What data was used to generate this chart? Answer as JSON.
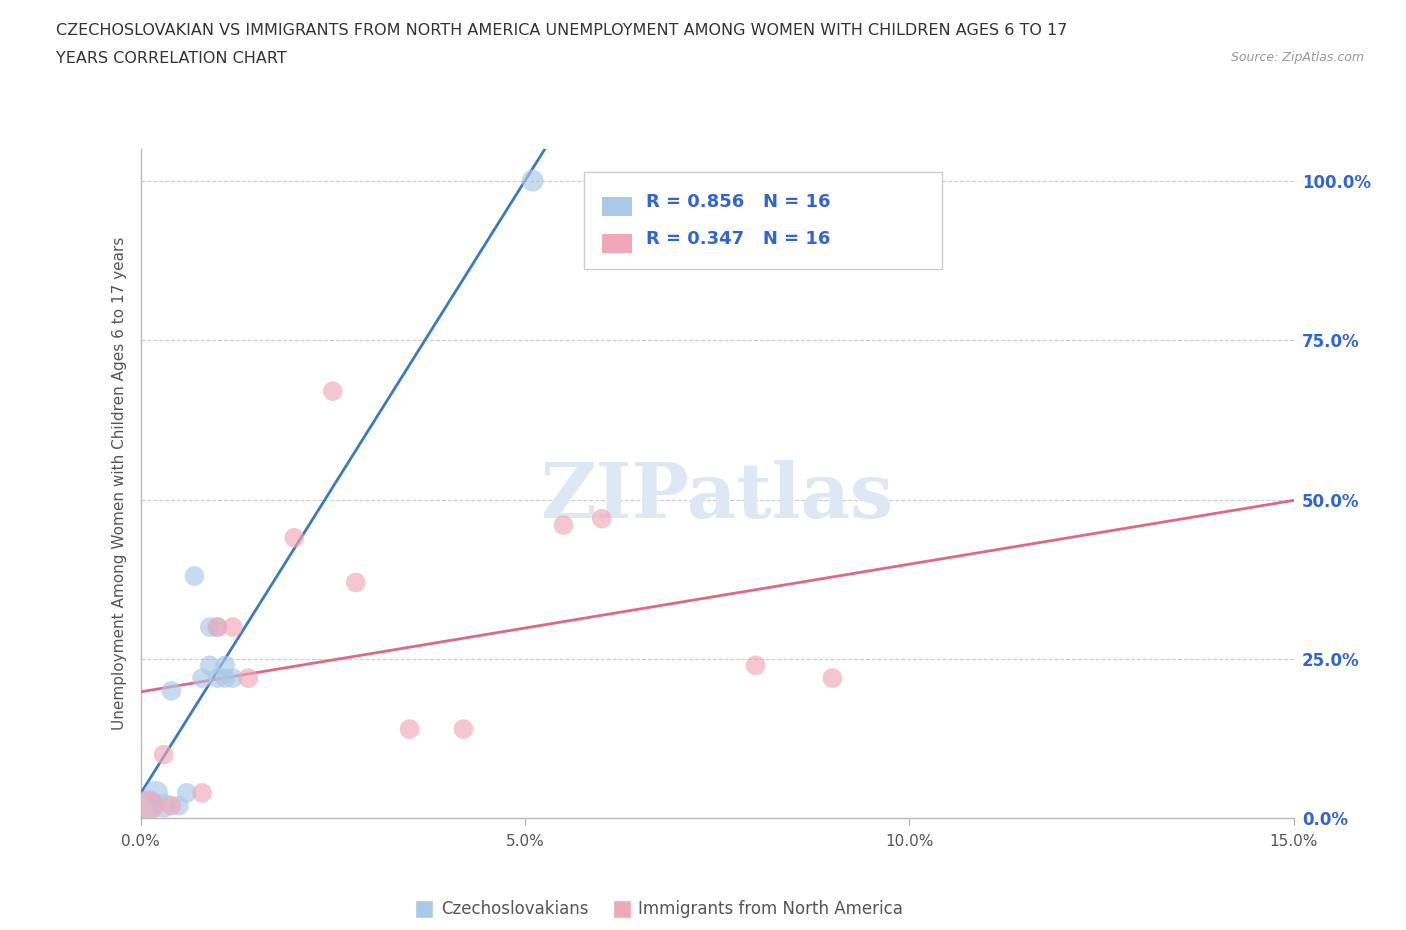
{
  "title_line1": "CZECHOSLOVAKIAN VS IMMIGRANTS FROM NORTH AMERICA UNEMPLOYMENT AMONG WOMEN WITH CHILDREN AGES 6 TO 17",
  "title_line2": "YEARS CORRELATION CHART",
  "source": "Source: ZipAtlas.com",
  "ylabel": "Unemployment Among Women with Children Ages 6 to 17 years",
  "watermark": "ZIPatlas",
  "legend_r1": "R = 0.856   N = 16",
  "legend_r2": "R = 0.347   N = 16",
  "legend_label1": "Czechoslovakians",
  "legend_label2": "Immigrants from North America",
  "blue_color": "#aac8e8",
  "pink_color": "#f0a8b8",
  "blue_line_color": "#3a7abf",
  "pink_line_color": "#e06880",
  "legend_text_color": "#3366cc",
  "rn_text_color": "#333333",
  "xlim": [
    0,
    0.15
  ],
  "ylim": [
    0,
    1.05
  ],
  "xticks": [
    0.0,
    0.05,
    0.1,
    0.15
  ],
  "xtick_labels": [
    "0.0%",
    "5.0%",
    "10.0%",
    "15.0%"
  ],
  "yticks_right": [
    0.0,
    0.25,
    0.5,
    0.75,
    1.0
  ],
  "ytick_labels_right": [
    "0.0%",
    "25.0%",
    "50.0%",
    "75.0%",
    "100.0%"
  ],
  "blue_x": [
    0.001,
    0.002,
    0.003,
    0.004,
    0.005,
    0.006,
    0.007,
    0.008,
    0.009,
    0.009,
    0.01,
    0.01,
    0.011,
    0.011,
    0.012,
    0.051
  ],
  "blue_y": [
    0.02,
    0.04,
    0.02,
    0.2,
    0.02,
    0.04,
    0.38,
    0.22,
    0.24,
    0.3,
    0.3,
    0.22,
    0.22,
    0.24,
    0.22,
    1.0
  ],
  "pink_x": [
    0.001,
    0.003,
    0.004,
    0.008,
    0.01,
    0.012,
    0.014,
    0.02,
    0.025,
    0.028,
    0.035,
    0.042,
    0.055,
    0.06,
    0.08,
    0.09
  ],
  "pink_y": [
    0.02,
    0.1,
    0.02,
    0.04,
    0.3,
    0.3,
    0.22,
    0.44,
    0.67,
    0.37,
    0.14,
    0.14,
    0.46,
    0.47,
    0.24,
    0.22
  ],
  "blue_dot_sizes": [
    400,
    300,
    300,
    200,
    200,
    200,
    200,
    200,
    200,
    200,
    200,
    200,
    200,
    200,
    200,
    250
  ],
  "pink_dot_sizes": [
    500,
    200,
    200,
    200,
    200,
    200,
    200,
    200,
    200,
    200,
    200,
    200,
    200,
    200,
    200,
    200
  ],
  "background_color": "#ffffff",
  "grid_color": "#cccccc"
}
